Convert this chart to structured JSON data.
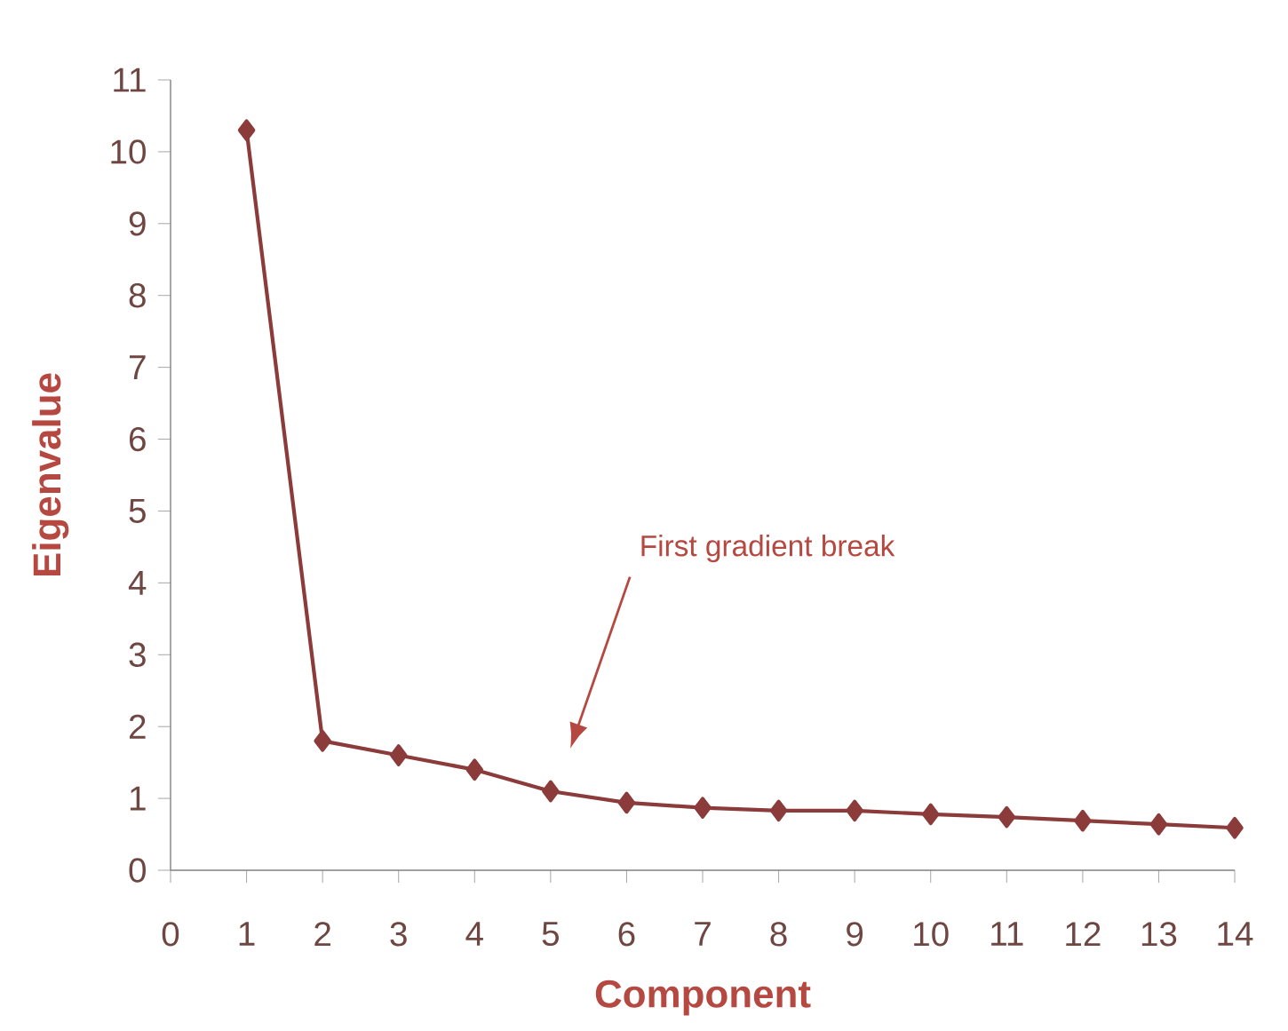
{
  "chart_data": {
    "type": "line",
    "xlabel": "Component",
    "ylabel": "Eigenvalue",
    "x": [
      1,
      2,
      3,
      4,
      5,
      6,
      7,
      8,
      9,
      10,
      11,
      12,
      13,
      14
    ],
    "series": [
      {
        "color": "#8c3b3b",
        "values": [
          10.3,
          1.8,
          1.6,
          1.4,
          1.1,
          0.94,
          0.87,
          0.83,
          0.83,
          0.78,
          0.74,
          0.69,
          0.64,
          0.59
        ]
      }
    ],
    "xlim": [
      0,
      14
    ],
    "xticks": [
      0,
      1,
      2,
      3,
      4,
      5,
      6,
      7,
      8,
      9,
      10,
      11,
      12,
      13,
      14
    ],
    "ylim": [
      0,
      11
    ],
    "yticks": [
      0,
      1,
      2,
      3,
      4,
      5,
      6,
      7,
      8,
      9,
      10,
      11
    ],
    "marker": "diamond",
    "line_style": "solid",
    "grid": false,
    "annotations": [
      "First gradient break"
    ]
  }
}
